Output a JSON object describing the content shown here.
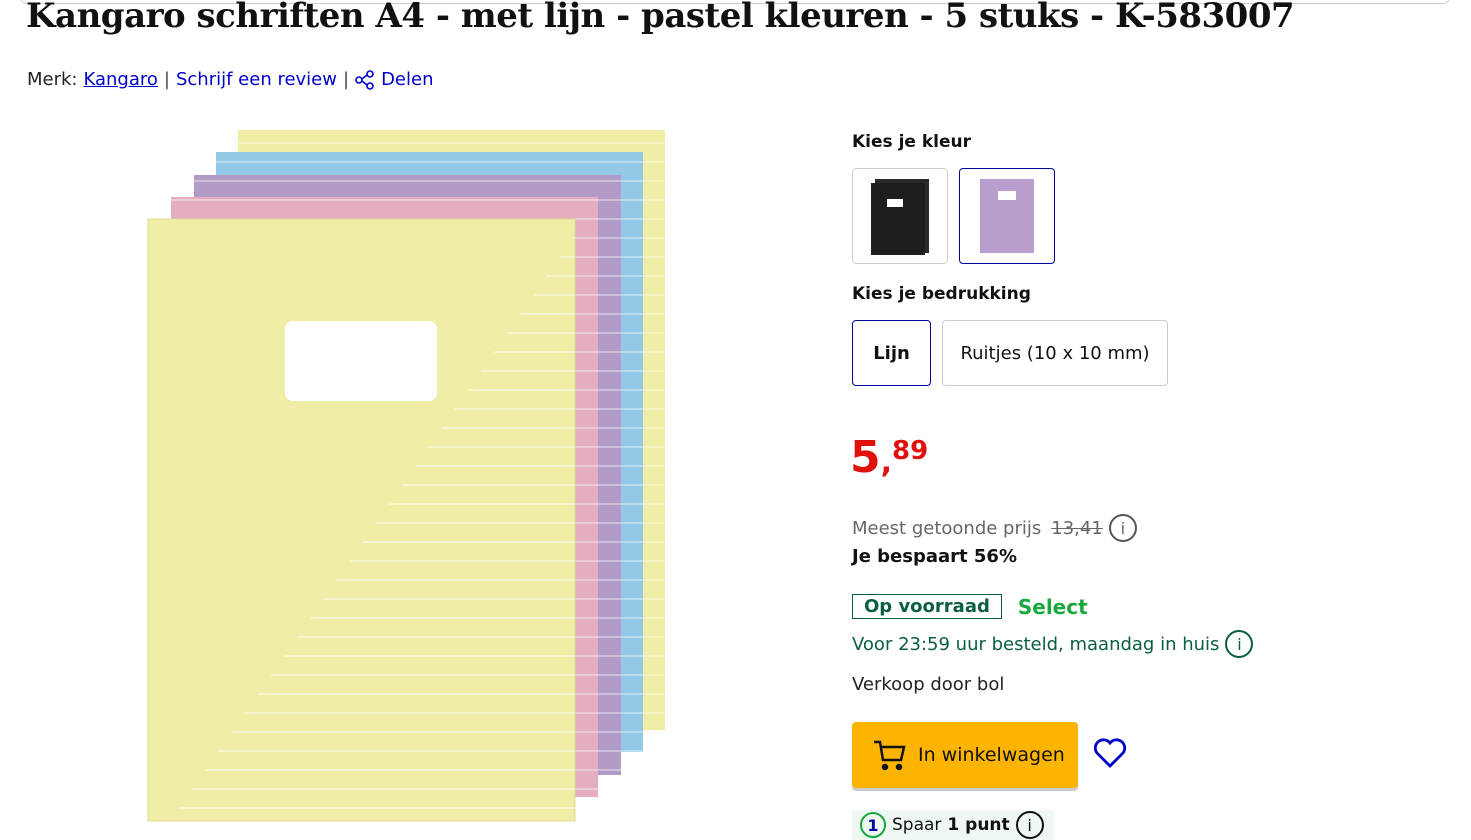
{
  "product": {
    "title": "Kangaro schriften A4 - met lijn - pastel kleuren - 5 stuks - K-583007",
    "brand_label": "Merk:",
    "brand": "Kangaro",
    "review_link": "Schrijf een review",
    "share_link": "Delen"
  },
  "color_choice": {
    "label": "Kies je kleur",
    "options": [
      "zwart",
      "pastel"
    ],
    "selected": "pastel"
  },
  "print_choice": {
    "label": "Kies je bedrukking",
    "options": [
      "Lijn",
      "Ruitjes (10 x 10 mm)"
    ],
    "selected": "Lijn"
  },
  "price": {
    "main": "5",
    "cents": "89",
    "comma": ",",
    "reference_label": "Meest getoonde prijs",
    "reference_price": "13,41",
    "savings": "Je bespaart 56%"
  },
  "stock": {
    "status": "Op voorraad",
    "badge": "Select",
    "delivery": "Voor 23:59 uur besteld, maandag in huis",
    "seller": "Verkoop door bol"
  },
  "actions": {
    "cart": "In winkelwagen"
  },
  "points": {
    "prefix": "Spaar",
    "bold": "1 punt",
    "count": "1"
  },
  "colors": {
    "price": "#e0100c",
    "link": "#0000cc",
    "cart": "#fdb400",
    "stock": "#0b5e3f",
    "select": "#18a83e"
  }
}
